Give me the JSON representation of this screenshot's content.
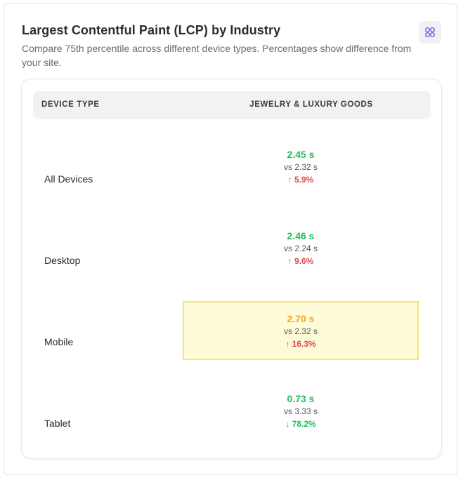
{
  "header": {
    "title": "Largest Contentful Paint (LCP) by Industry",
    "subtitle": "Compare 75th percentile across different device types. Percentages show difference from your site.",
    "icon": "grid-icon"
  },
  "table": {
    "columns": [
      "DEVICE TYPE",
      "JEWELRY & LUXURY GOODS"
    ],
    "rows": [
      {
        "device": "All Devices",
        "value": "2.45 s",
        "vs": "vs 2.32 s",
        "diff": "↑ 5.9%",
        "value_color": "#1fbf5a",
        "diff_color": "#e5484d",
        "highlight": false
      },
      {
        "device": "Desktop",
        "value": "2.46 s",
        "vs": "vs 2.24 s",
        "diff": "↑ 9.6%",
        "value_color": "#1fbf5a",
        "diff_color": "#e5484d",
        "highlight": false
      },
      {
        "device": "Mobile",
        "value": "2.70 s",
        "vs": "vs 2.32 s",
        "diff": "↑ 16.3%",
        "value_color": "#f5a623",
        "diff_color": "#e5484d",
        "highlight": true
      },
      {
        "device": "Tablet",
        "value": "0.73 s",
        "vs": "vs 3.33 s",
        "diff": "↓ 78.2%",
        "value_color": "#1fbf5a",
        "diff_color": "#1fbf5a",
        "highlight": false
      }
    ]
  },
  "colors": {
    "accent": "#7c5cd6",
    "good": "#1fbf5a",
    "warn": "#f5a623",
    "bad": "#e5484d"
  }
}
